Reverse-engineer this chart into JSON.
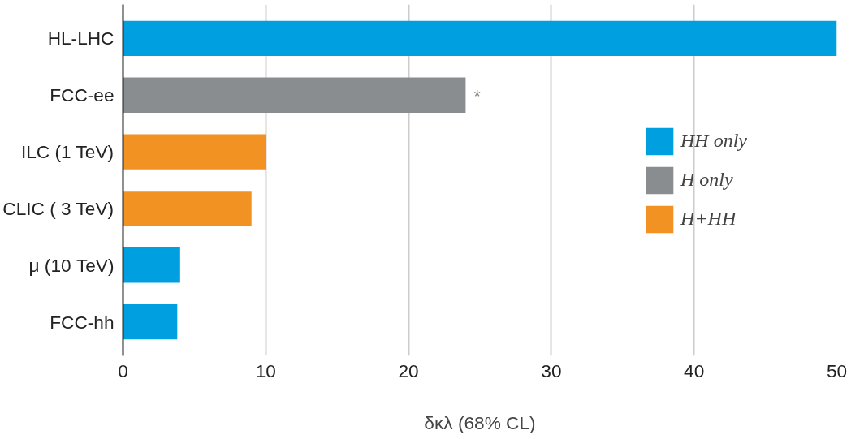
{
  "chart_data": {
    "type": "bar",
    "orientation": "horizontal",
    "categories": [
      "HL-LHC",
      "FCC-ee",
      "ILC (1 TeV)",
      "CLIC ( 3 TeV)",
      "μ (10 TeV)",
      "FCC-hh"
    ],
    "series": [
      {
        "name": "HH only",
        "color": "#009fe0",
        "values": [
          50,
          null,
          null,
          null,
          4,
          3.8
        ]
      },
      {
        "name": "H only",
        "color": "#8a8d8f",
        "values": [
          null,
          24,
          null,
          null,
          null,
          null
        ]
      },
      {
        "name": "H+HH",
        "color": "#f29222",
        "values": [
          null,
          null,
          10,
          9,
          null,
          null
        ]
      }
    ],
    "xlim": [
      0,
      50
    ],
    "xticks": [
      0,
      10,
      20,
      30,
      40,
      50
    ],
    "xlabel": "δκλ (68% CL)",
    "annotations": [
      {
        "text": "*",
        "x": 24,
        "y": "FCC-ee"
      }
    ],
    "grid": "x",
    "legend": "right"
  }
}
